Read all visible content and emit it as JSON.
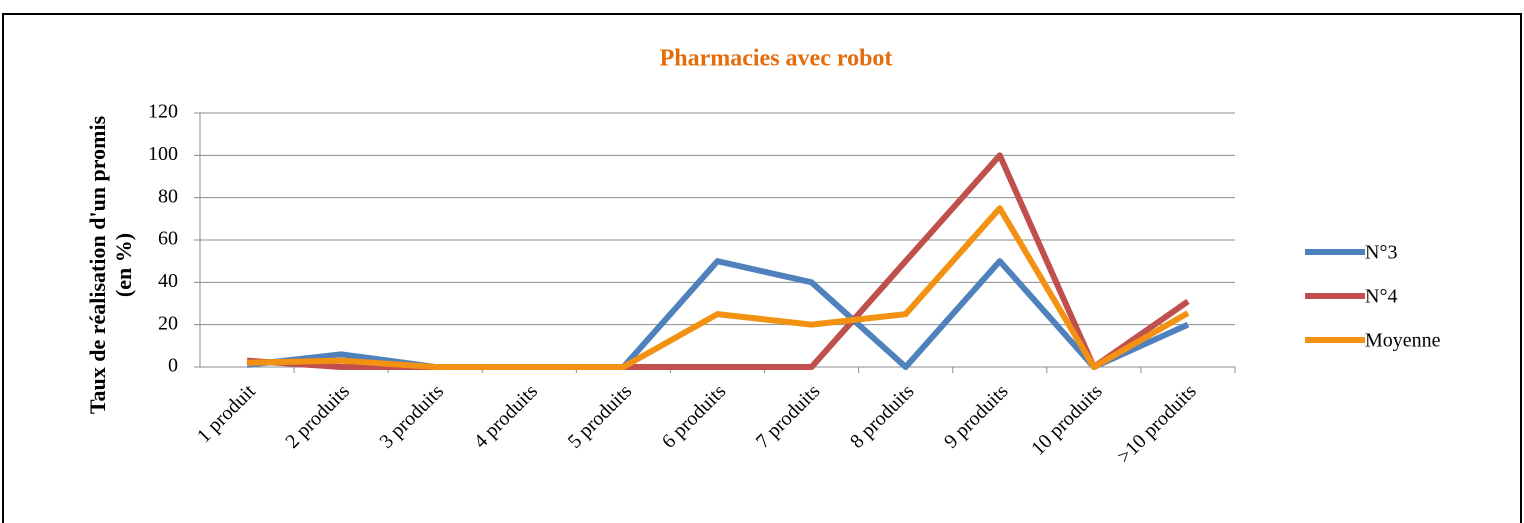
{
  "chart_data": {
    "type": "line",
    "title": "Pharmacies avec robot",
    "ylabel": [
      "Taux de réalisation d'un promis",
      "(en %)"
    ],
    "categories": [
      "1 produit",
      "2 produits",
      "3  produits",
      "4 produits",
      "5 produits",
      "6 produits",
      "7 produits",
      "8 produits",
      "9 produits",
      "10 produits",
      ">10 produits"
    ],
    "series": [
      {
        "name": "N°3",
        "color": "#4f81bd",
        "values": [
          1,
          6,
          0,
          0,
          0,
          50,
          40,
          0,
          50,
          0,
          20
        ]
      },
      {
        "name": "N°4",
        "color": "#c0504d",
        "values": [
          3,
          0,
          0,
          0,
          0,
          0,
          0,
          50,
          100,
          0,
          31
        ]
      },
      {
        "name": "Moyenne",
        "color": "#f39212",
        "values": [
          2,
          3,
          0,
          0,
          0,
          25,
          20,
          25,
          75,
          0,
          25.5
        ]
      }
    ],
    "ylim": [
      0,
      120
    ],
    "yticks": [
      0,
      20,
      40,
      60,
      80,
      100,
      120
    ],
    "grid": true,
    "legend": "right"
  }
}
